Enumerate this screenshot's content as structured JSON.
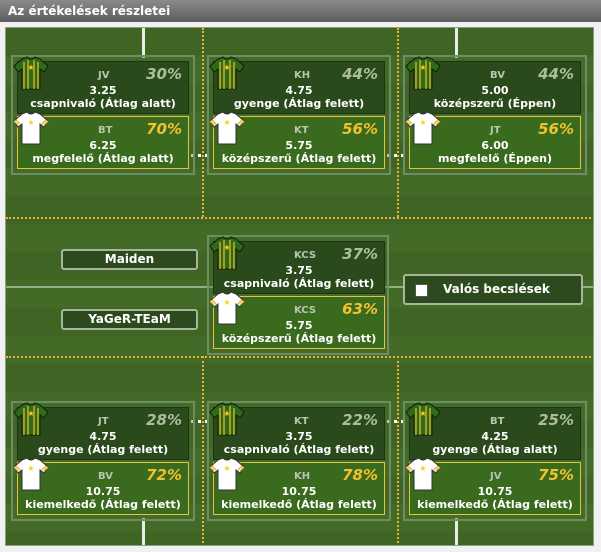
{
  "window": {
    "title": "Az értékelések részletei"
  },
  "teams": {
    "home": "Maiden",
    "away": "YaGeR-TEaM"
  },
  "realistic": {
    "label": "Valós becslések",
    "checked": false
  },
  "colors": {
    "home_jersey": "#2f6a1a",
    "home_stripes": "#e6b828",
    "away_jersey": "#ffffff",
    "away_stripes": "#e6b828",
    "accent": "#f3c12c"
  },
  "positions": {
    "p1": {
      "home": {
        "code": "JV",
        "pct": "30%",
        "value": "3.25",
        "label": "csapnivaló (Átlag alatt)"
      },
      "away": {
        "code": "BT",
        "pct": "70%",
        "value": "6.25",
        "label": "megfelelő (Átlag alatt)"
      }
    },
    "p2": {
      "home": {
        "code": "KH",
        "pct": "44%",
        "value": "4.75",
        "label": "gyenge (Átlag felett)"
      },
      "away": {
        "code": "KT",
        "pct": "56%",
        "value": "5.75",
        "label": "középszerű (Átlag felett)"
      }
    },
    "p3": {
      "home": {
        "code": "BV",
        "pct": "44%",
        "value": "5.00",
        "label": "középszerű (Éppen)"
      },
      "away": {
        "code": "JT",
        "pct": "56%",
        "value": "6.00",
        "label": "megfelelő (Éppen)"
      }
    },
    "p4": {
      "home": {
        "code": "KCS",
        "pct": "37%",
        "value": "3.75",
        "label": "csapnivaló (Átlag felett)"
      },
      "away": {
        "code": "KCS",
        "pct": "63%",
        "value": "5.75",
        "label": "középszerű (Átlag felett)"
      }
    },
    "p5": {
      "home": {
        "code": "JT",
        "pct": "28%",
        "value": "4.75",
        "label": "gyenge (Átlag felett)"
      },
      "away": {
        "code": "BV",
        "pct": "72%",
        "value": "10.75",
        "label": "kiemelkedő (Átlag felett)"
      }
    },
    "p6": {
      "home": {
        "code": "KT",
        "pct": "22%",
        "value": "3.75",
        "label": "csapnivaló (Átlag felett)"
      },
      "away": {
        "code": "KH",
        "pct": "78%",
        "value": "10.75",
        "label": "kiemelkedő (Átlag felett)"
      }
    },
    "p7": {
      "home": {
        "code": "BT",
        "pct": "25%",
        "value": "4.25",
        "label": "gyenge (Átlag alatt)"
      },
      "away": {
        "code": "JV",
        "pct": "75%",
        "value": "10.75",
        "label": "kiemelkedő (Átlag felett)"
      }
    }
  }
}
